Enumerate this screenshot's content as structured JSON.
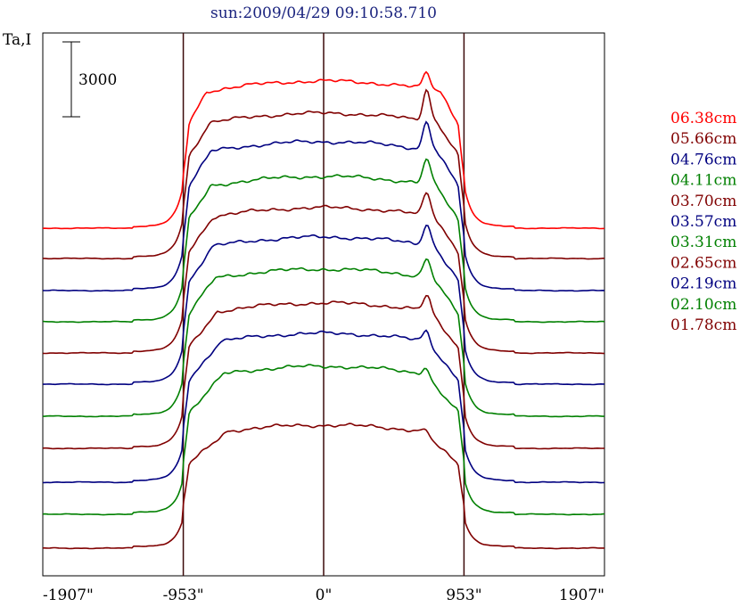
{
  "chart_data": {
    "type": "line",
    "title": "sun:2009/04/29 09:10:58.710",
    "ylabel": "Ta,I",
    "scale_bar_label": "3000",
    "x_ticks": [
      {
        "value": -1907,
        "label": "-1907\""
      },
      {
        "value": -953,
        "label": "-953\""
      },
      {
        "value": 0,
        "label": "0\""
      },
      {
        "value": 953,
        "label": "953\""
      },
      {
        "value": 1907,
        "label": "1907\""
      }
    ],
    "xlim": [
      -1907,
      1907
    ],
    "vertical_lines": [
      -953,
      0,
      953
    ],
    "grid": false,
    "legend_position": "right",
    "series": [
      {
        "name": "06.38cm",
        "color": "#ff0000",
        "baseline_y": 256,
        "plateau": 165,
        "limb_peak": 18,
        "ramp": 1.9
      },
      {
        "name": "05.66cm",
        "color": "#800000",
        "baseline_y": 290,
        "plateau": 163,
        "limb_peak": 36,
        "ramp": 1.7
      },
      {
        "name": "04.76cm",
        "color": "#000080",
        "baseline_y": 326,
        "plateau": 167,
        "limb_peak": 32,
        "ramp": 1.6
      },
      {
        "name": "04.11cm",
        "color": "#008000",
        "baseline_y": 361,
        "plateau": 163,
        "limb_peak": 28,
        "ramp": 1.6
      },
      {
        "name": "03.70cm",
        "color": "#800000",
        "baseline_y": 396,
        "plateau": 163,
        "limb_peak": 26,
        "ramp": 1.5
      },
      {
        "name": "03.57cm",
        "color": "#000080",
        "baseline_y": 431,
        "plateau": 165,
        "limb_peak": 24,
        "ramp": 1.5
      },
      {
        "name": "03.31cm",
        "color": "#008000",
        "baseline_y": 467,
        "plateau": 165,
        "limb_peak": 20,
        "ramp": 1.4
      },
      {
        "name": "02.65cm",
        "color": "#800000",
        "baseline_y": 503,
        "plateau": 163,
        "limb_peak": 16,
        "ramp": 1.3
      },
      {
        "name": "02.19cm",
        "color": "#000080",
        "baseline_y": 541,
        "plateau": 167,
        "limb_peak": 12,
        "ramp": 1.2
      },
      {
        "name": "02.10cm",
        "color": "#008000",
        "baseline_y": 577,
        "plateau": 166,
        "limb_peak": 10,
        "ramp": 1.1
      },
      {
        "name": "01.78cm",
        "color": "#800000",
        "baseline_y": 615,
        "plateau": 138,
        "limb_peak": 6,
        "ramp": 1.0
      }
    ]
  }
}
